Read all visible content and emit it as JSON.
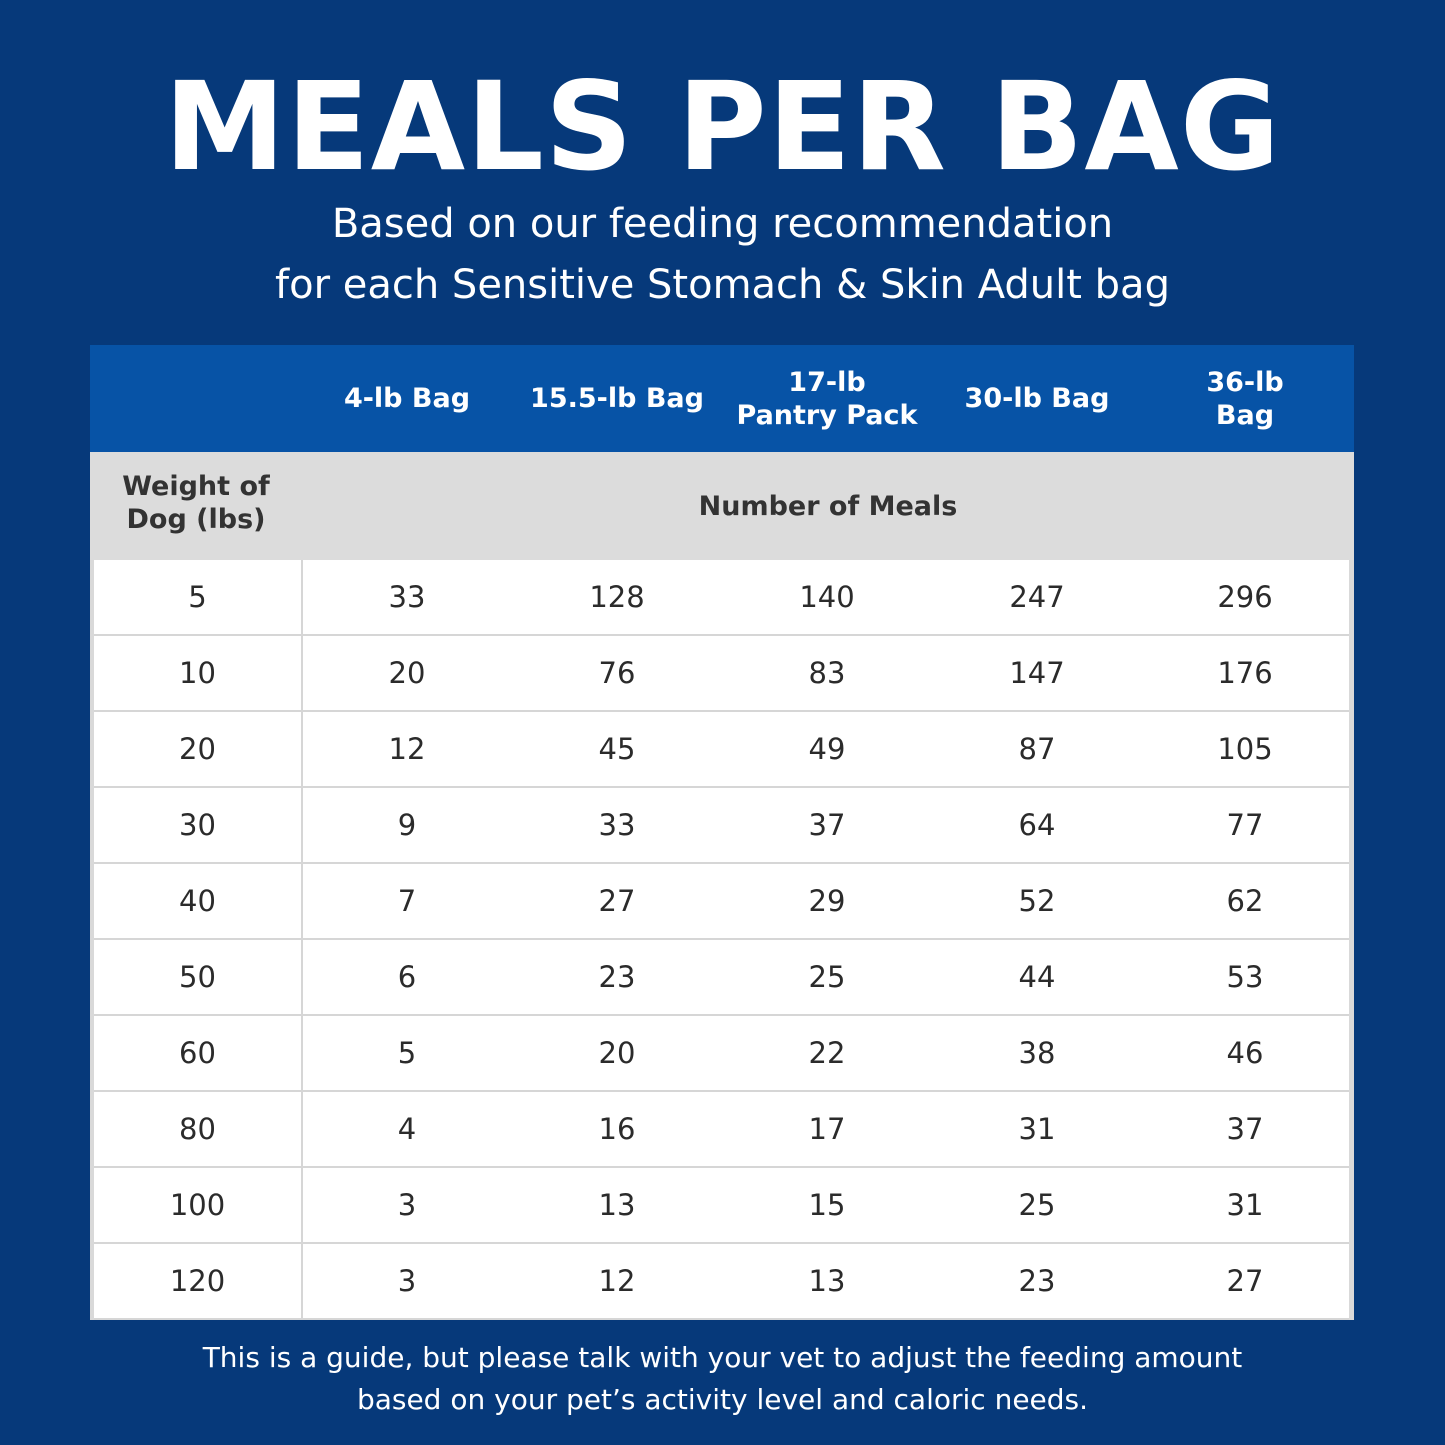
{
  "title": "MEALS PER BAG",
  "subtitle": [
    "Based on our feeding recommendation",
    "for each Sensitive Stomach & Skin Adult bag"
  ],
  "table": {
    "columns": [
      "4-lb Bag",
      "15.5-lb Bag",
      "17-lb Pantry Pack",
      "30-lb Bag",
      "36-lb Bag"
    ],
    "column_lines": [
      [
        "4-lb Bag"
      ],
      [
        "15.5-lb Bag"
      ],
      [
        "17-lb",
        "Pantry Pack"
      ],
      [
        "30-lb Bag"
      ],
      [
        "36-lb",
        "Bag"
      ]
    ],
    "row_header": [
      "Weight of",
      "Dog (lbs)"
    ],
    "group_header": "Number of Meals",
    "rows": [
      [
        "5",
        "33",
        "128",
        "140",
        "247",
        "296"
      ],
      [
        "10",
        "20",
        "76",
        "83",
        "147",
        "176"
      ],
      [
        "20",
        "12",
        "45",
        "49",
        "87",
        "105"
      ],
      [
        "30",
        "9",
        "33",
        "37",
        "64",
        "77"
      ],
      [
        "40",
        "7",
        "27",
        "29",
        "52",
        "62"
      ],
      [
        "50",
        "6",
        "23",
        "25",
        "44",
        "53"
      ],
      [
        "60",
        "5",
        "20",
        "22",
        "38",
        "46"
      ],
      [
        "80",
        "4",
        "16",
        "17",
        "31",
        "37"
      ],
      [
        "100",
        "3",
        "13",
        "15",
        "25",
        "31"
      ],
      [
        "120",
        "3",
        "12",
        "13",
        "23",
        "27"
      ]
    ]
  },
  "footer": [
    "This is a guide, but please talk with your vet to adjust the feeding amount",
    "based on your pet’s activity level and caloric needs."
  ],
  "colors": {
    "background": "#06397a",
    "header": "#0753a6",
    "subheader": "#dcdcdc"
  }
}
